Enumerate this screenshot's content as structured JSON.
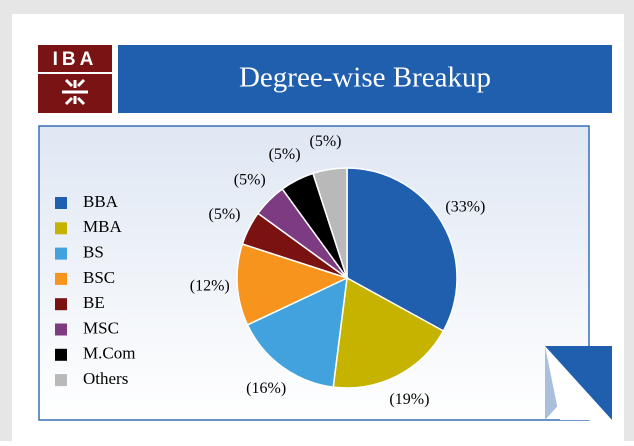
{
  "logo": {
    "text": "IBA"
  },
  "chart_data": {
    "type": "pie",
    "title": "Degree-wise Breakup",
    "categories": [
      "BBA",
      "MBA",
      "BS",
      "BSC",
      "BE",
      "MSC",
      "M.Com",
      "Others"
    ],
    "values": [
      33,
      19,
      16,
      12,
      5,
      5,
      5,
      5
    ],
    "value_labels": [
      "(33%)",
      "(19%)",
      "(16%)",
      "(12%)",
      "(5%)",
      "(5%)",
      "(5%)",
      "(5%)"
    ],
    "colors": [
      "#1f5fae",
      "#c6b300",
      "#41a2dd",
      "#f7941d",
      "#7a1212",
      "#7d3b82",
      "#000000",
      "#b9b9b9"
    ],
    "legend": "left"
  }
}
